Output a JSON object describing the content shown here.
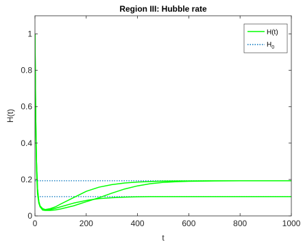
{
  "chart_data": {
    "type": "line",
    "title": "Region III: Hubble rate",
    "xlabel": "t",
    "ylabel": "H(t)",
    "xlim": [
      0,
      1000
    ],
    "ylim": [
      0,
      1.1
    ],
    "x_ticks": [
      "0",
      "200",
      "400",
      "600",
      "800",
      "1000"
    ],
    "y_ticks": [
      "0",
      "0.2",
      "0.4",
      "0.6",
      "0.8",
      "1"
    ],
    "grid": false,
    "legend_position": "top-right",
    "legend": [
      {
        "label": "H(t)",
        "style": "solid",
        "color": "#00ff00"
      },
      {
        "label": "H",
        "subscript": "0",
        "style": "dotted",
        "color": "#0072bd"
      }
    ],
    "reference_lines": [
      {
        "series": "H0",
        "y": 0.193
      },
      {
        "series": "H0",
        "y": 0.106
      }
    ],
    "series": [
      {
        "series": "H(t)",
        "x": [
          0,
          3,
          6,
          10,
          15,
          20,
          30,
          40,
          60,
          80,
          100,
          150,
          200,
          250,
          300,
          350,
          400,
          450,
          500,
          550,
          600,
          700,
          800,
          900,
          1000
        ],
        "y": [
          1.0,
          0.55,
          0.3,
          0.15,
          0.08,
          0.055,
          0.04,
          0.035,
          0.04,
          0.05,
          0.065,
          0.1,
          0.135,
          0.158,
          0.172,
          0.181,
          0.186,
          0.189,
          0.191,
          0.192,
          0.192,
          0.193,
          0.193,
          0.193,
          0.193
        ]
      },
      {
        "series": "H(t)",
        "x": [
          0,
          3,
          6,
          10,
          15,
          20,
          30,
          40,
          60,
          80,
          100,
          150,
          200,
          250,
          300,
          350,
          400,
          450,
          500,
          550,
          600,
          700,
          800,
          900,
          1000
        ],
        "y": [
          1.0,
          0.55,
          0.3,
          0.15,
          0.08,
          0.05,
          0.032,
          0.03,
          0.03,
          0.033,
          0.038,
          0.055,
          0.078,
          0.1,
          0.125,
          0.148,
          0.165,
          0.177,
          0.184,
          0.188,
          0.19,
          0.192,
          0.193,
          0.193,
          0.193
        ]
      },
      {
        "series": "H(t)",
        "x": [
          0,
          3,
          6,
          10,
          15,
          20,
          30,
          40,
          60,
          80,
          100,
          150,
          200,
          250,
          300,
          350,
          400,
          450,
          500,
          600,
          700,
          800,
          900,
          1000
        ],
        "y": [
          1.0,
          0.5,
          0.25,
          0.12,
          0.07,
          0.05,
          0.037,
          0.033,
          0.035,
          0.042,
          0.05,
          0.07,
          0.085,
          0.095,
          0.1,
          0.103,
          0.105,
          0.106,
          0.106,
          0.106,
          0.106,
          0.106,
          0.106,
          0.106
        ]
      }
    ]
  },
  "style": {
    "line_color": "#00ff00",
    "ref_color": "#0072bd",
    "axis_color": "#262626"
  }
}
